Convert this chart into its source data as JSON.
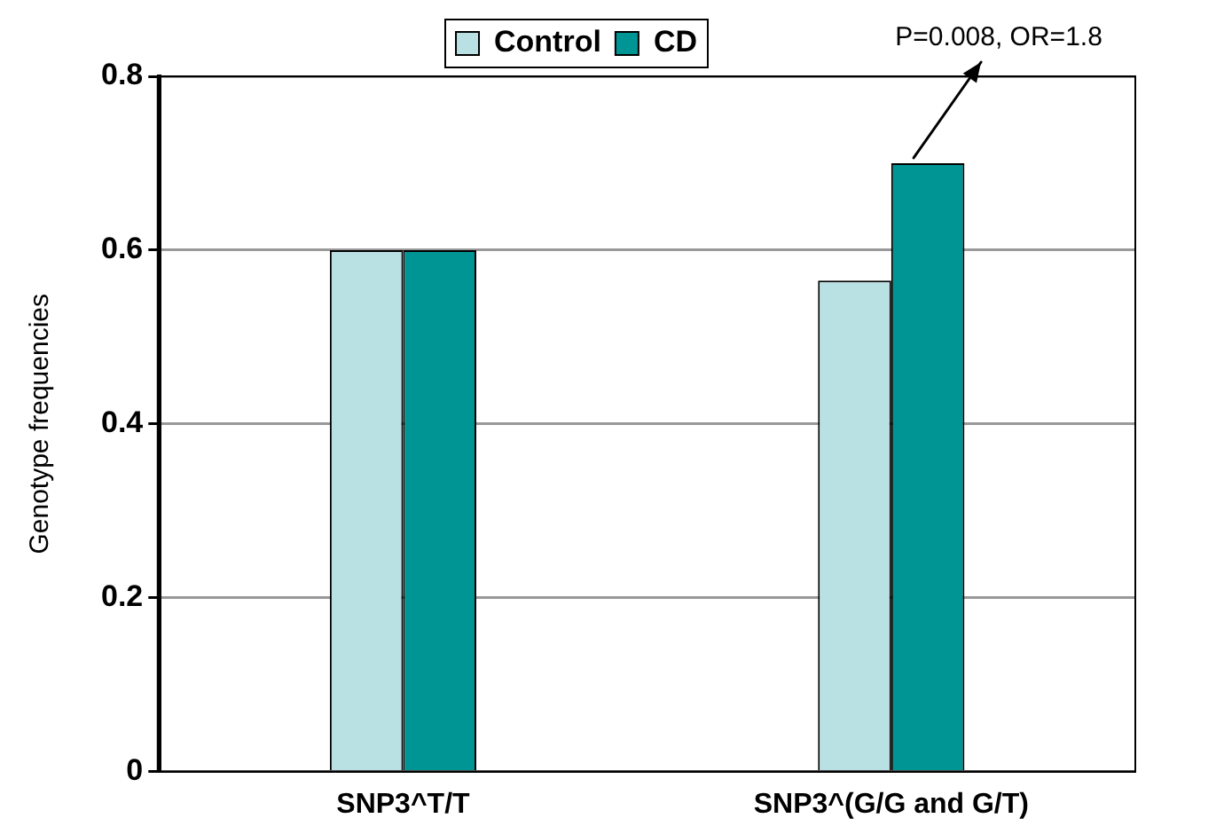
{
  "chart_data": {
    "type": "bar",
    "ylabel": "Genotype frequencies",
    "categories": [
      "SNP3^T/T",
      "SNP3^(G/G and G/T)"
    ],
    "series": [
      {
        "name": "Control",
        "color": "#b9e0e3",
        "values": [
          0.6,
          0.565
        ]
      },
      {
        "name": "CD",
        "color": "#009595",
        "values": [
          0.6,
          0.7
        ]
      }
    ],
    "ylim": [
      0,
      0.8
    ],
    "yticks": [
      0,
      0.2,
      0.4,
      0.6,
      0.8
    ],
    "grid": "y",
    "legend": "top",
    "annotations": [
      "P=0.008, OR=1.8"
    ]
  }
}
